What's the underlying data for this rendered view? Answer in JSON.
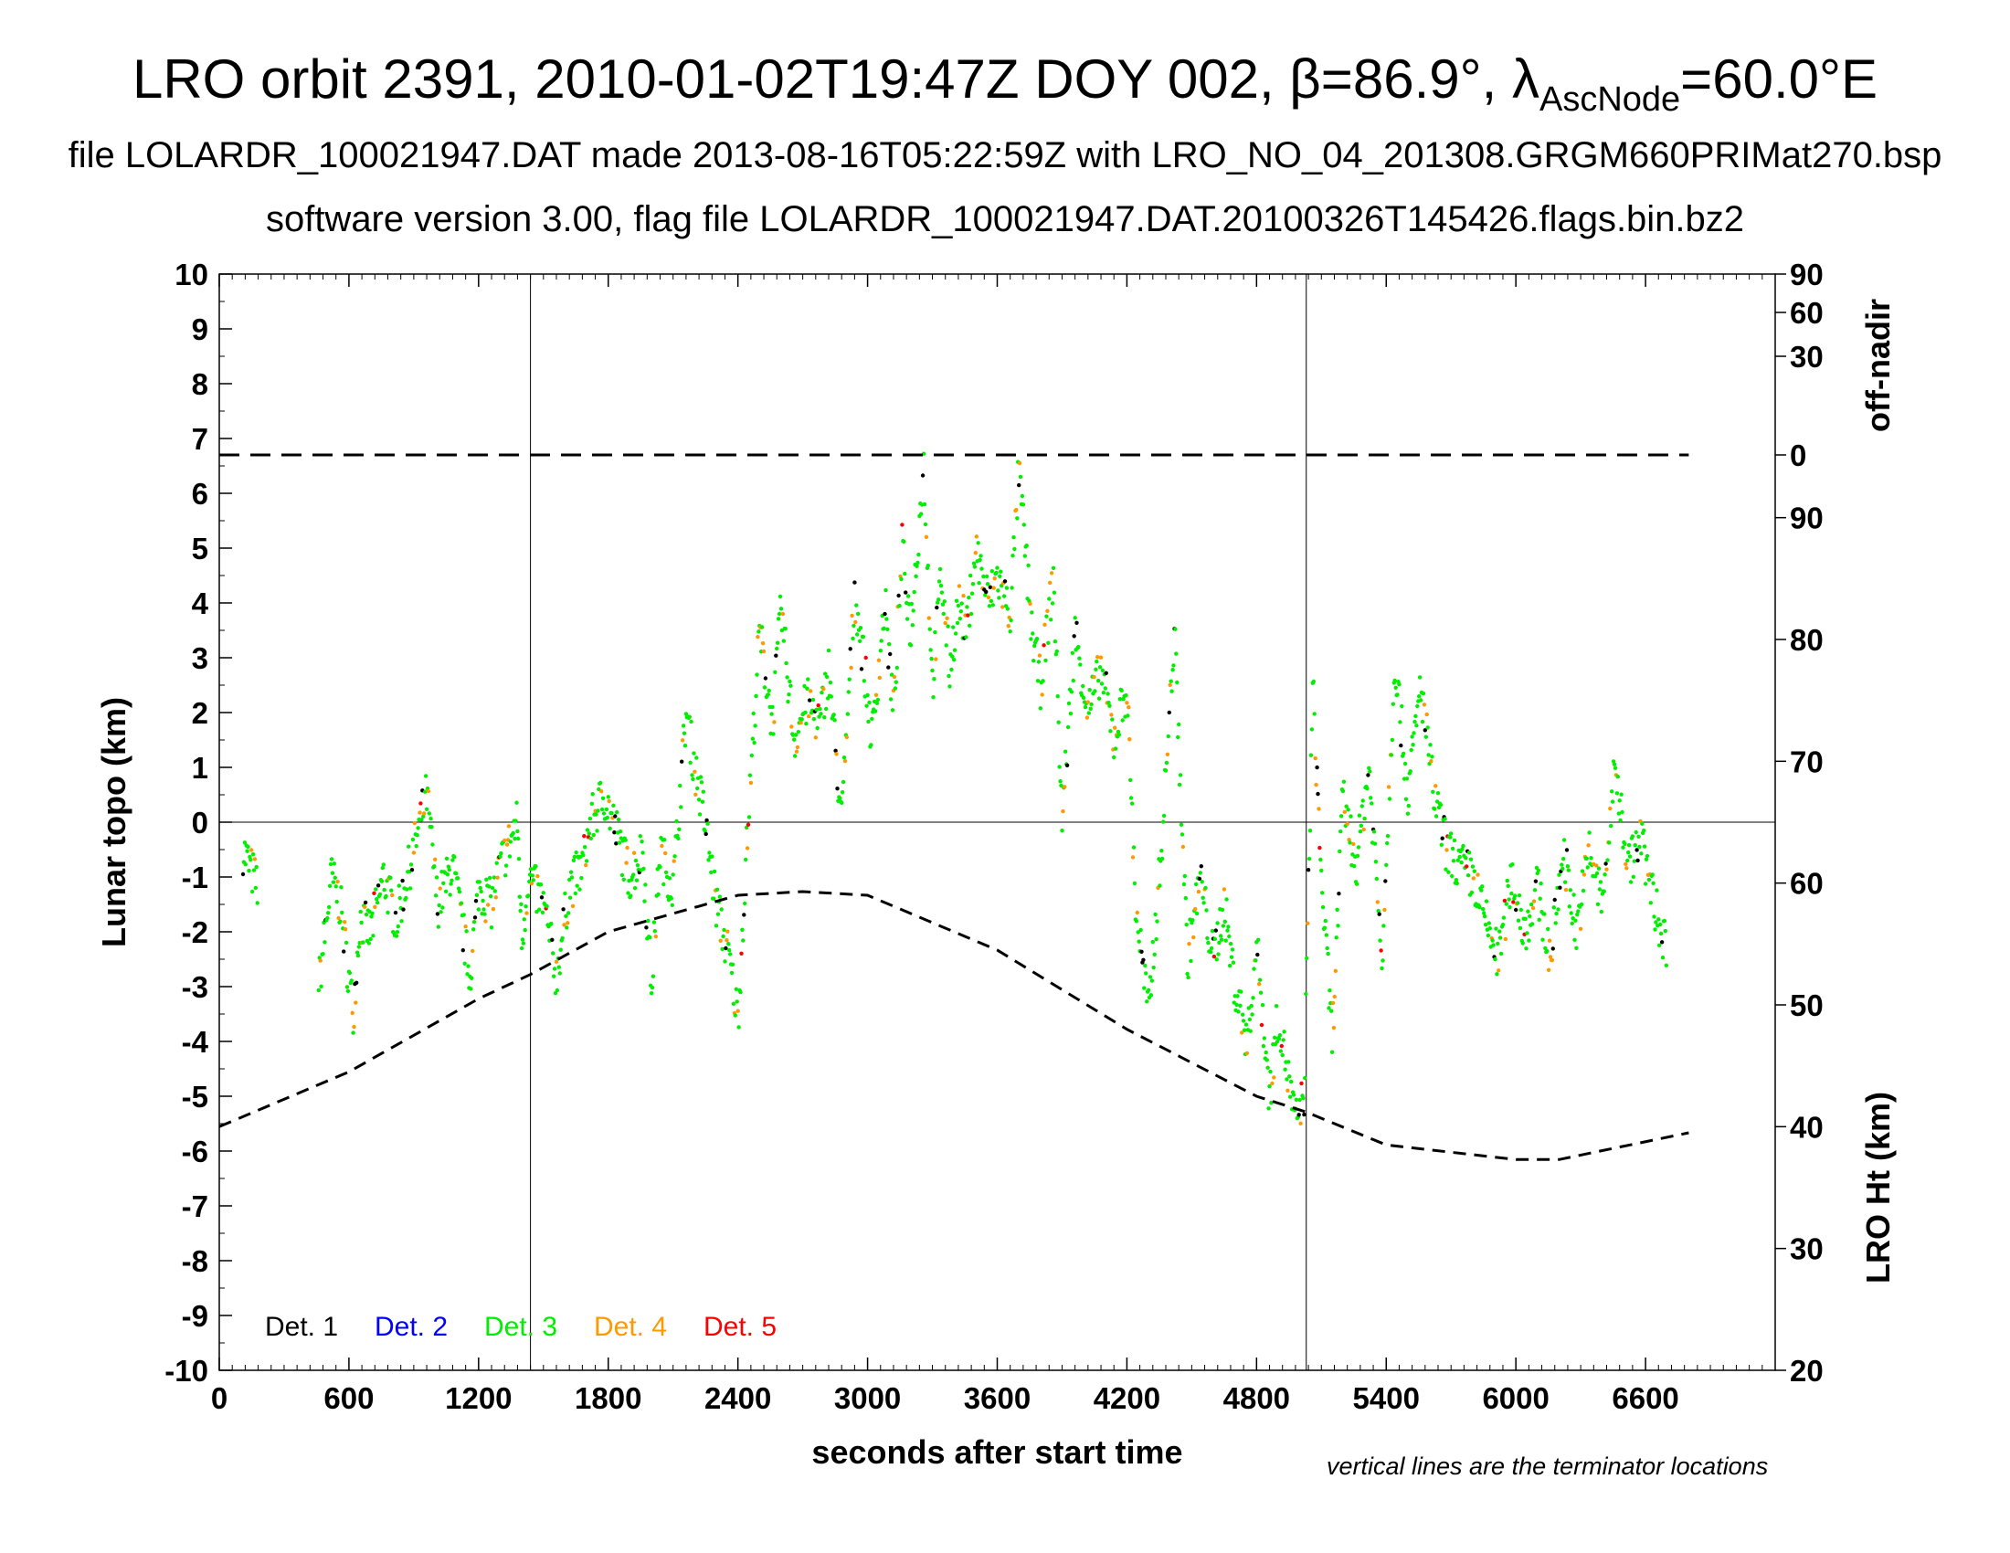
{
  "titles": {
    "line1_main": "LRO orbit 2391, 2010-01-02T19:47Z DOY 002, β=86.9°, λ",
    "line1_sub": "AscNode",
    "line1_tail": "=60.0°E",
    "line2": "file LOLARDR_100021947.DAT made 2013-08-16T05:22:59Z with LRO_NO_04_201308.GRGM660PRIMat270.bsp",
    "line3": "software version 3.00, flag file LOLARDR_100021947.DAT.20100326T145426.flags.bin.bz2"
  },
  "note": "vertical lines are the terminator locations",
  "chart_data": {
    "type": "scatter",
    "xlabel": "seconds after start time",
    "ylabel": "Lunar topo (km)",
    "y2label_top": "off-nadir",
    "y2label_bottom": "LRO Ht (km)",
    "xlim": [
      0,
      7200
    ],
    "ylim": [
      -10,
      10
    ],
    "x_ticks": [
      0,
      600,
      1200,
      1800,
      2400,
      3000,
      3600,
      4200,
      4800,
      5400,
      6000,
      6600
    ],
    "y_ticks": [
      10,
      9,
      8,
      7,
      6,
      5,
      4,
      3,
      2,
      1,
      0,
      -1,
      -2,
      -3,
      -4,
      -5,
      -6,
      -7,
      -8,
      -9,
      -10
    ],
    "offnadir_ticks": [
      90,
      60,
      30,
      0
    ],
    "offnadir_ticks_y": [
      10,
      9.3,
      8.5,
      6.7
    ],
    "height_ticks": [
      90,
      80,
      70,
      60,
      50,
      40,
      30,
      20
    ],
    "height_range_km": [
      20,
      110
    ],
    "terminators_s": [
      1440,
      5030
    ],
    "zero_line": true,
    "legend": [
      {
        "name": "Det. 1",
        "color": "#000000"
      },
      {
        "name": "Det. 2",
        "color": "#0000ff"
      },
      {
        "name": "Det. 3",
        "color": "#00ee00"
      },
      {
        "name": "Det. 4",
        "color": "#ff9900"
      },
      {
        "name": "Det. 5",
        "color": "#ff0000"
      }
    ],
    "legend_placement": "bottom-left",
    "offnadir_series": {
      "x": [
        0,
        6800
      ],
      "value_deg": 0
    },
    "lro_height_series": {
      "x": [
        0,
        600,
        1200,
        1440,
        1800,
        2400,
        2700,
        3000,
        3600,
        4200,
        4800,
        5030,
        5400,
        6000,
        6200,
        6800
      ],
      "height_km": [
        40,
        44.5,
        50.5,
        52.5,
        56,
        59,
        59.3,
        59,
        54.5,
        48,
        42.5,
        41.2,
        38.5,
        37.3,
        37.3,
        39.5
      ]
    },
    "topo_series": {
      "x": [
        110,
        180,
        460,
        520,
        560,
        620,
        650,
        700,
        760,
        820,
        900,
        960,
        1010,
        1080,
        1120,
        1160,
        1200,
        1260,
        1300,
        1380,
        1400,
        1430,
        1500,
        1560,
        1620,
        1680,
        1720,
        1780,
        1840,
        1900,
        1960,
        2000,
        2040,
        2100,
        2160,
        2200,
        2240,
        2300,
        2360,
        2400,
        2440,
        2500,
        2560,
        2600,
        2660,
        2720,
        2780,
        2820,
        2880,
        2940,
        2980,
        3020,
        3080,
        3120,
        3160,
        3200,
        3260,
        3300,
        3340,
        3380,
        3420,
        3460,
        3500,
        3560,
        3600,
        3660,
        3700,
        3760,
        3800,
        3860,
        3900,
        3960,
        4020,
        4080,
        4140,
        4200,
        4240,
        4300,
        4360,
        4420,
        4480,
        4540,
        4600,
        4650,
        4700,
        4760,
        4800,
        4860,
        4900,
        4940,
        4980,
        5020,
        5060,
        5100,
        5150,
        5200,
        5260,
        5320,
        5380,
        5440,
        5500,
        5560,
        5620,
        5680,
        5740,
        5800,
        5860,
        5920,
        5980,
        6040,
        6100,
        6160,
        6220,
        6280,
        6340,
        6400,
        6460,
        6520,
        6580,
        6640,
        6700
      ],
      "topo_km": [
        -0.5,
        -1.2,
        -3.0,
        -1.0,
        -1.5,
        -3.5,
        -1.8,
        -2.0,
        -1.0,
        -1.8,
        -0.5,
        0.5,
        -1.5,
        -0.8,
        -1.8,
        -2.8,
        -1.2,
        -1.5,
        -0.8,
        0.0,
        -2.2,
        -1.0,
        -1.5,
        -2.8,
        -1.2,
        -0.8,
        0.0,
        0.5,
        -0.2,
        -1.0,
        -0.5,
        -3.0,
        -0.5,
        -1.2,
        2.0,
        1.0,
        0.2,
        -1.5,
        -2.5,
        -3.6,
        -0.5,
        3.5,
        1.8,
        3.9,
        1.5,
        2.2,
        1.8,
        2.8,
        0.0,
        4.2,
        3.0,
        1.5,
        4.0,
        2.0,
        5.0,
        3.5,
        6.5,
        2.5,
        4.5,
        2.8,
        4.0,
        3.5,
        5.0,
        4.0,
        4.5,
        3.8,
        6.4,
        3.5,
        2.5,
        4.5,
        0.0,
        3.5,
        2.0,
        2.8,
        1.5,
        2.5,
        -1.5,
        -3.5,
        -0.5,
        3.5,
        -2.5,
        -1.0,
        -2.5,
        -1.5,
        -3.0,
        -4.0,
        -2.2,
        -5.0,
        -3.5,
        -4.5,
        -5.5,
        -5.0,
        2.5,
        -1.0,
        -4.0,
        0.5,
        -0.8,
        1.0,
        -2.5,
        3.0,
        0.5,
        2.5,
        0.5,
        -0.5,
        -0.8,
        -1.0,
        -1.8,
        -2.5,
        -1.0,
        -2.0,
        -1.2,
        -2.5,
        -0.5,
        -2.0,
        -0.5,
        -1.5,
        1.0,
        -0.8,
        -0.3,
        -1.5,
        -2.3
      ]
    }
  }
}
